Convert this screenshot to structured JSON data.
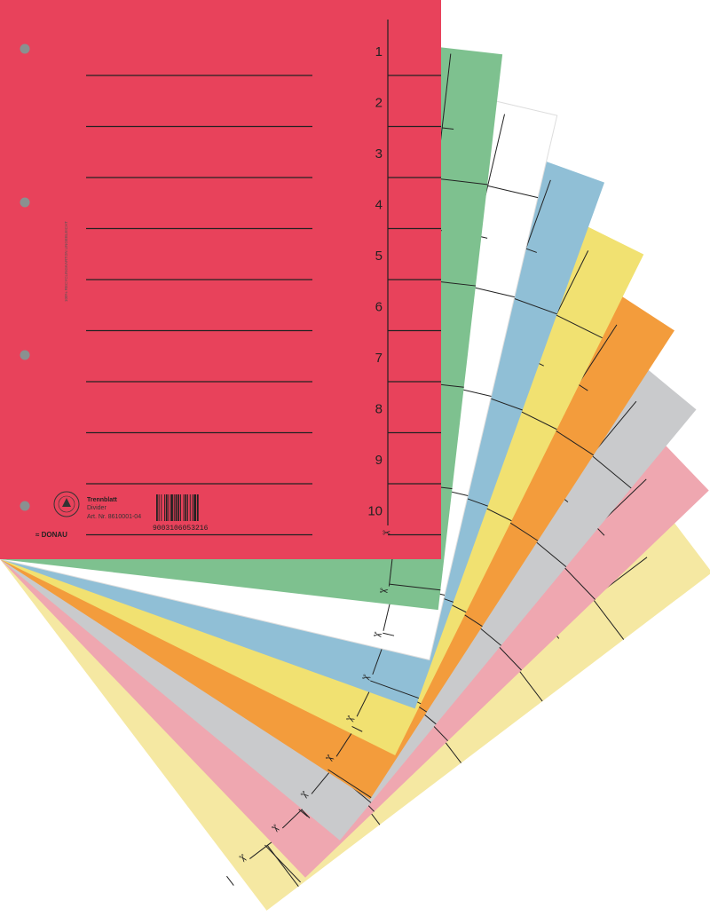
{
  "product": {
    "title": "Trennblatt",
    "subtitle": "Divider",
    "article": "Art. Nr. 8610001-04",
    "brand": "DONAU",
    "barcode": "9003106053216",
    "vertical_note": "100% RECYCLINGKARTON UNGEBLEICHT",
    "tab_numbers": [
      "1",
      "2",
      "3",
      "4",
      "5",
      "6",
      "7",
      "8",
      "9",
      "10"
    ]
  },
  "sheet_colors": [
    "#f5e8a2",
    "#efa7b0",
    "#c9cacc",
    "#f39c3c",
    "#f1e171",
    "#90bfd6",
    "#ffffff",
    "#7ec18f",
    "#e8425b"
  ],
  "icons": {
    "holes": "punch-hole",
    "scissors": "scissors-icon",
    "seal": "eco-seal"
  }
}
